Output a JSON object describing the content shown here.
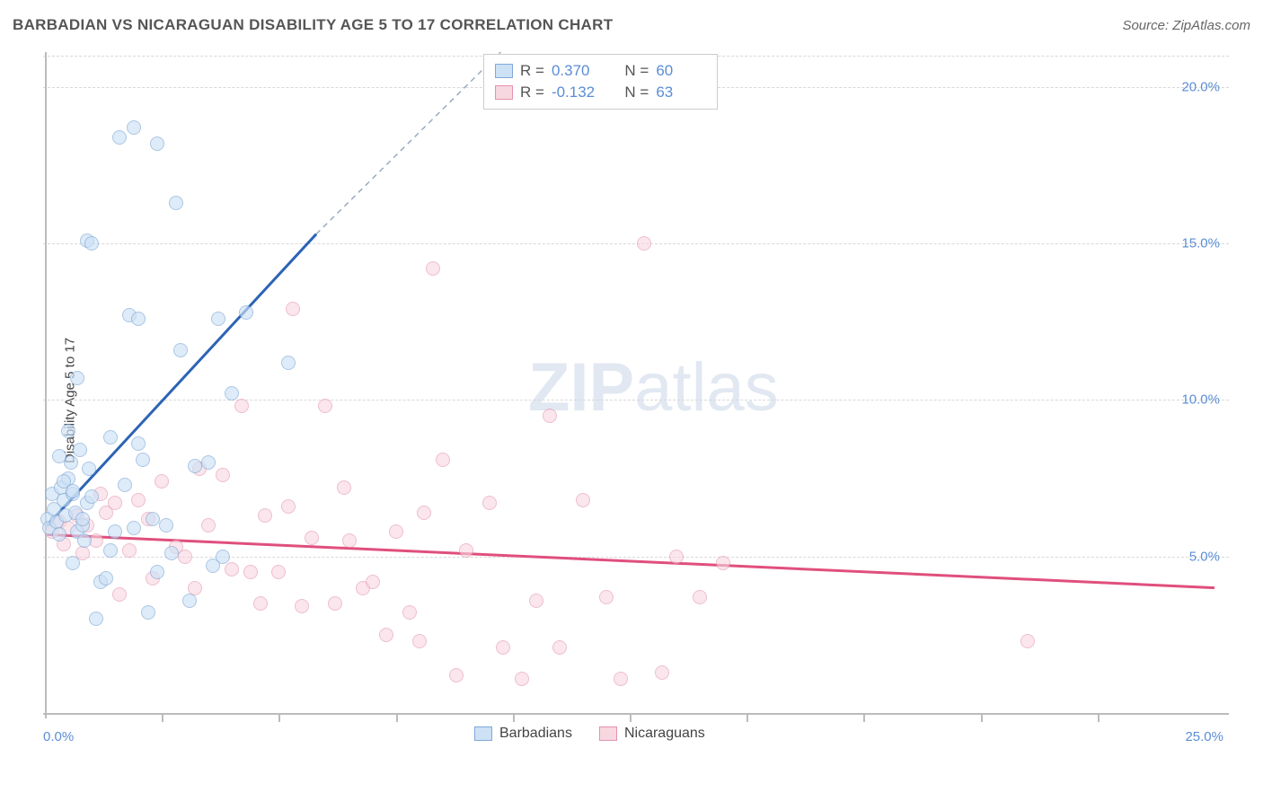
{
  "title": "BARBADIAN VS NICARAGUAN DISABILITY AGE 5 TO 17 CORRELATION CHART",
  "source": "Source: ZipAtlas.com",
  "y_axis_label": "Disability Age 5 to 17",
  "watermark_bold": "ZIP",
  "watermark_light": "atlas",
  "chart": {
    "type": "scatter",
    "xlim": [
      0,
      25
    ],
    "ylim": [
      0,
      21
    ],
    "x_origin_label": "0.0%",
    "x_end_label": "25.0%",
    "x_ticks": [
      2.5,
      5.0,
      7.5,
      10.0,
      12.5,
      15.0,
      17.5,
      20.0,
      22.5
    ],
    "y_grid": [
      5.0,
      10.0,
      15.0,
      20.0
    ],
    "y_labels": [
      "5.0%",
      "10.0%",
      "15.0%",
      "20.0%"
    ],
    "background_color": "#ffffff",
    "grid_color": "#d8d8d8",
    "axis_color": "#bbbbbb",
    "tick_label_color": "#5b8dd6",
    "marker_radius": 8,
    "marker_stroke_width": 1.5,
    "series": [
      {
        "name": "Barbadians",
        "fill": "#cde1f5",
        "stroke": "#7fa9d8",
        "fill_opacity": 0.65,
        "r_value": "0.370",
        "n_value": "60",
        "trend": {
          "x1": 0.05,
          "y1": 6.0,
          "x2": 5.8,
          "y2": 15.3,
          "dash_x2": 10.0,
          "dash_y2": 22.0,
          "color": "#2c63b5",
          "width": 3
        },
        "points": [
          [
            0.05,
            6.2
          ],
          [
            0.1,
            5.9
          ],
          [
            0.15,
            7.0
          ],
          [
            0.2,
            6.5
          ],
          [
            0.25,
            6.1
          ],
          [
            0.3,
            5.7
          ],
          [
            0.35,
            7.2
          ],
          [
            0.4,
            6.8
          ],
          [
            0.45,
            6.3
          ],
          [
            0.5,
            7.5
          ],
          [
            0.55,
            8.0
          ],
          [
            0.6,
            7.0
          ],
          [
            0.65,
            6.4
          ],
          [
            0.7,
            5.8
          ],
          [
            0.75,
            8.4
          ],
          [
            0.8,
            6.0
          ],
          [
            0.85,
            5.5
          ],
          [
            0.9,
            6.7
          ],
          [
            0.95,
            7.8
          ],
          [
            1.0,
            6.9
          ],
          [
            0.5,
            9.0
          ],
          [
            0.7,
            10.7
          ],
          [
            0.9,
            15.1
          ],
          [
            1.0,
            15.0
          ],
          [
            1.2,
            4.2
          ],
          [
            1.3,
            4.3
          ],
          [
            1.4,
            5.2
          ],
          [
            1.5,
            5.8
          ],
          [
            1.6,
            18.4
          ],
          [
            1.8,
            12.7
          ],
          [
            1.9,
            18.7
          ],
          [
            2.0,
            8.6
          ],
          [
            2.0,
            12.6
          ],
          [
            2.1,
            8.1
          ],
          [
            2.2,
            3.2
          ],
          [
            2.4,
            18.2
          ],
          [
            2.4,
            4.5
          ],
          [
            2.7,
            5.1
          ],
          [
            2.8,
            16.3
          ],
          [
            2.9,
            11.6
          ],
          [
            3.1,
            3.6
          ],
          [
            3.2,
            7.9
          ],
          [
            3.5,
            8.0
          ],
          [
            3.6,
            4.7
          ],
          [
            3.7,
            12.6
          ],
          [
            3.8,
            5.0
          ],
          [
            4.0,
            10.2
          ],
          [
            4.3,
            12.8
          ],
          [
            5.2,
            11.2
          ],
          [
            0.6,
            4.8
          ],
          [
            1.1,
            3.0
          ],
          [
            1.4,
            8.8
          ],
          [
            1.7,
            7.3
          ],
          [
            1.9,
            5.9
          ],
          [
            2.3,
            6.2
          ],
          [
            2.6,
            6.0
          ],
          [
            0.3,
            8.2
          ],
          [
            0.4,
            7.4
          ],
          [
            0.6,
            7.1
          ],
          [
            0.8,
            6.2
          ]
        ]
      },
      {
        "name": "Nicaraguans",
        "fill": "#f7d7e0",
        "stroke": "#e593ac",
        "fill_opacity": 0.6,
        "r_value": "-0.132",
        "n_value": "63",
        "trend": {
          "x1": 0.05,
          "y1": 5.7,
          "x2": 25.0,
          "y2": 4.0,
          "color": "#e04f7d",
          "width": 3
        },
        "points": [
          [
            0.15,
            5.8
          ],
          [
            0.3,
            6.1
          ],
          [
            0.5,
            5.9
          ],
          [
            0.7,
            6.3
          ],
          [
            0.9,
            6.0
          ],
          [
            1.1,
            5.5
          ],
          [
            1.3,
            6.4
          ],
          [
            1.5,
            6.7
          ],
          [
            1.8,
            5.2
          ],
          [
            2.0,
            6.8
          ],
          [
            2.2,
            6.2
          ],
          [
            2.5,
            7.4
          ],
          [
            2.8,
            5.3
          ],
          [
            3.0,
            5.0
          ],
          [
            3.3,
            7.8
          ],
          [
            3.5,
            6.0
          ],
          [
            3.8,
            7.6
          ],
          [
            4.0,
            4.6
          ],
          [
            4.2,
            9.8
          ],
          [
            4.4,
            4.5
          ],
          [
            4.6,
            3.5
          ],
          [
            5.0,
            4.5
          ],
          [
            5.2,
            6.6
          ],
          [
            5.3,
            12.9
          ],
          [
            5.5,
            3.4
          ],
          [
            5.7,
            5.6
          ],
          [
            6.0,
            9.8
          ],
          [
            6.2,
            3.5
          ],
          [
            6.5,
            5.5
          ],
          [
            6.8,
            4.0
          ],
          [
            7.0,
            4.2
          ],
          [
            7.3,
            2.5
          ],
          [
            7.5,
            5.8
          ],
          [
            7.8,
            3.2
          ],
          [
            8.0,
            2.3
          ],
          [
            8.3,
            14.2
          ],
          [
            8.5,
            8.1
          ],
          [
            8.8,
            1.2
          ],
          [
            9.0,
            5.2
          ],
          [
            9.5,
            6.7
          ],
          [
            9.8,
            2.1
          ],
          [
            10.2,
            1.1
          ],
          [
            10.5,
            3.6
          ],
          [
            10.8,
            9.5
          ],
          [
            11.0,
            2.1
          ],
          [
            11.5,
            6.8
          ],
          [
            12.0,
            3.7
          ],
          [
            12.3,
            1.1
          ],
          [
            12.8,
            15.0
          ],
          [
            13.2,
            1.3
          ],
          [
            13.5,
            5.0
          ],
          [
            14.0,
            3.7
          ],
          [
            14.5,
            4.8
          ],
          [
            1.2,
            7.0
          ],
          [
            1.6,
            3.8
          ],
          [
            2.3,
            4.3
          ],
          [
            3.2,
            4.0
          ],
          [
            4.7,
            6.3
          ],
          [
            6.4,
            7.2
          ],
          [
            8.1,
            6.4
          ],
          [
            21.0,
            2.3
          ],
          [
            0.4,
            5.4
          ],
          [
            0.8,
            5.1
          ]
        ]
      }
    ]
  },
  "stats_box": {
    "r_label": "R =",
    "n_label": "N ="
  },
  "legend": {
    "series1": "Barbadians",
    "series2": "Nicaraguans"
  }
}
